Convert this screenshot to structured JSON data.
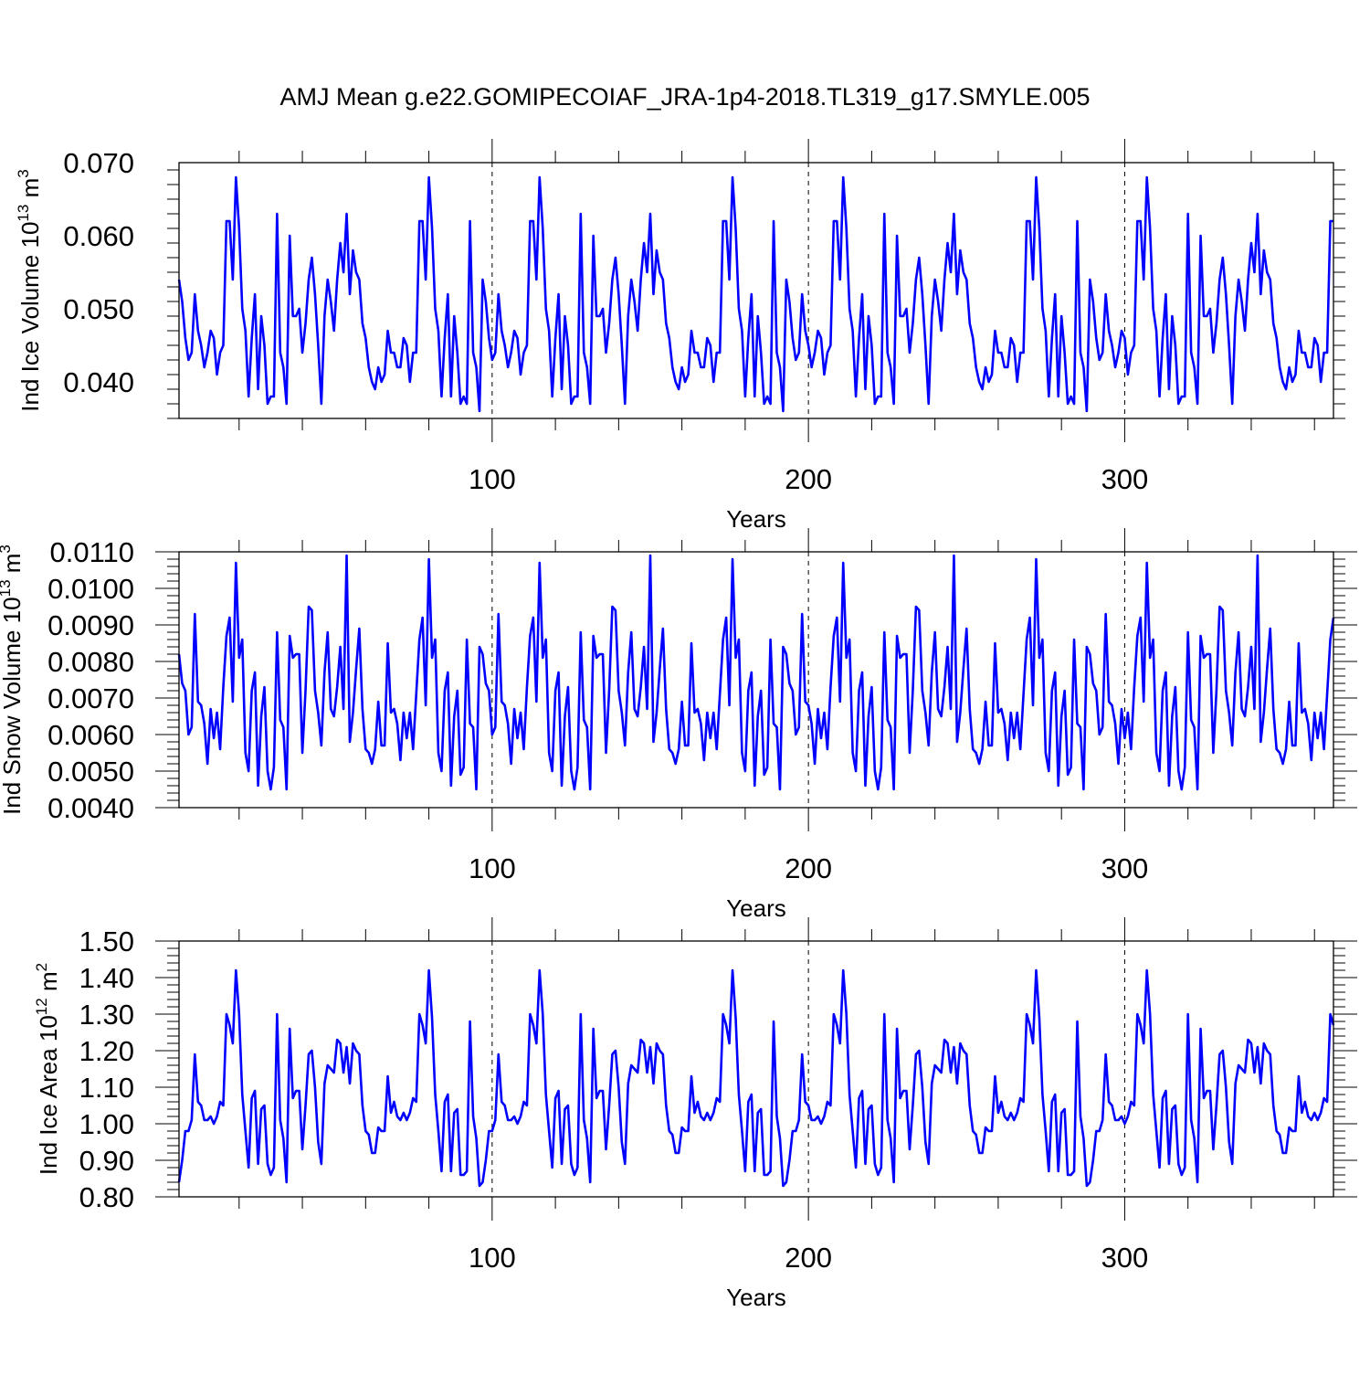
{
  "title": "AMJ Mean g.e22.GOMIPECOIAF_JRA-1p4-2018.TL319_g17.SMYLE.005",
  "line_color": "#0000ff",
  "chart_data": [
    {
      "type": "line",
      "ylabel": "Ind Ice Volume",
      "yunit_base": "10",
      "yunit_exp": "13",
      "yunit_suffix": "m",
      "yunit_suffix_exp": "3",
      "xlabel": "Years",
      "xlim": [
        1,
        366
      ],
      "ylim": [
        0.035,
        0.07
      ],
      "yticks": [
        0.04,
        0.05,
        0.06,
        0.07
      ],
      "ytick_labels": [
        "0.040",
        "0.050",
        "0.060",
        "0.070"
      ],
      "xticks": [
        100,
        200,
        300
      ],
      "xtick_labels": [
        "100",
        "200",
        "300"
      ],
      "decimals": 3,
      "profile": [
        0.054,
        0.051,
        0.046,
        0.043,
        0.044,
        0.052,
        0.047,
        0.045,
        0.042,
        0.044,
        0.047,
        0.046,
        0.041,
        0.044,
        0.045,
        0.062,
        0.062,
        0.054,
        0.068,
        0.061,
        0.05,
        0.047,
        0.038,
        0.046,
        0.052,
        0.039,
        0.049,
        0.045,
        0.037,
        0.038,
        0.038,
        0.063,
        0.044,
        0.042,
        0.037,
        0.06,
        0.049,
        0.049,
        0.05,
        0.044,
        0.048,
        0.054,
        0.057,
        0.052,
        0.045,
        0.037,
        0.049,
        0.054,
        0.051,
        0.047,
        0.054,
        0.059,
        0.055,
        0.063,
        0.052,
        0.058,
        0.055,
        0.054,
        0.048,
        0.046,
        0.042,
        0.04,
        0.039,
        0.042,
        0.04,
        0.041,
        0.047,
        0.044,
        0.044,
        0.042,
        0.042,
        0.046,
        0.045,
        0.04,
        0.044,
        0.044,
        0.062,
        0.062,
        0.054,
        0.068,
        0.061,
        0.05,
        0.047,
        0.038,
        0.046,
        0.052,
        0.038,
        0.049,
        0.044,
        0.037,
        0.038,
        0.037,
        0.062,
        0.044,
        0.042,
        0.036
      ]
    },
    {
      "type": "line",
      "ylabel": "Ind Snow Volume",
      "yunit_base": "10",
      "yunit_exp": "13",
      "yunit_suffix": "m",
      "yunit_suffix_exp": "3",
      "xlabel": "Years",
      "xlim": [
        1,
        366
      ],
      "ylim": [
        0.004,
        0.011
      ],
      "yticks": [
        0.004,
        0.005,
        0.006,
        0.007,
        0.008,
        0.009,
        0.01,
        0.011
      ],
      "ytick_labels": [
        "0.0040",
        "0.0050",
        "0.0060",
        "0.0070",
        "0.0080",
        "0.0090",
        "0.0100",
        "0.0110"
      ],
      "xticks": [
        100,
        200,
        300
      ],
      "xtick_labels": [
        "100",
        "200",
        "300"
      ],
      "decimals": 4,
      "profile": [
        0.0082,
        0.0074,
        0.0072,
        0.006,
        0.0062,
        0.0093,
        0.0069,
        0.0068,
        0.0063,
        0.0052,
        0.0067,
        0.0059,
        0.0066,
        0.0056,
        0.0073,
        0.0087,
        0.0092,
        0.0069,
        0.0107,
        0.0081,
        0.0086,
        0.0055,
        0.005,
        0.0072,
        0.0077,
        0.0046,
        0.0065,
        0.0073,
        0.005,
        0.0045,
        0.0051,
        0.0088,
        0.0064,
        0.0062,
        0.0045,
        0.0087,
        0.0081,
        0.0082,
        0.0082,
        0.0055,
        0.0072,
        0.0095,
        0.0094,
        0.0072,
        0.0066,
        0.0057,
        0.0077,
        0.0088,
        0.0067,
        0.0065,
        0.0073,
        0.0084,
        0.0067,
        0.0109,
        0.0058,
        0.0066,
        0.0078,
        0.0089,
        0.0067,
        0.0056,
        0.0055,
        0.0052,
        0.0056,
        0.0069,
        0.0057,
        0.0057,
        0.0085,
        0.0066,
        0.0067,
        0.0063,
        0.0053,
        0.0066,
        0.0059,
        0.0066,
        0.0056,
        0.0071,
        0.0086,
        0.0092,
        0.0068,
        0.0108,
        0.0081,
        0.0086,
        0.0055,
        0.005,
        0.0072,
        0.0077,
        0.0046,
        0.0065,
        0.0072,
        0.0049,
        0.0051,
        0.0086,
        0.0063,
        0.0062,
        0.0045,
        0.0084
      ]
    },
    {
      "type": "line",
      "ylabel": "Ind Ice Area",
      "yunit_base": "10",
      "yunit_exp": "12",
      "yunit_suffix": "m",
      "yunit_suffix_exp": "2",
      "xlabel": "Years",
      "xlim": [
        1,
        366
      ],
      "ylim": [
        0.8,
        1.5
      ],
      "yticks": [
        0.8,
        0.9,
        1.0,
        1.1,
        1.2,
        1.3,
        1.4,
        1.5
      ],
      "ytick_labels": [
        "0.80",
        "0.90",
        "1.00",
        "1.10",
        "1.20",
        "1.30",
        "1.40",
        "1.50"
      ],
      "xticks": [
        100,
        200,
        300
      ],
      "xtick_labels": [
        "100",
        "200",
        "300"
      ],
      "decimals": 3,
      "profile": [
        0.84,
        0.9,
        0.98,
        0.98,
        1.01,
        1.19,
        1.06,
        1.05,
        1.01,
        1.01,
        1.02,
        1.0,
        1.02,
        1.06,
        1.05,
        1.3,
        1.27,
        1.22,
        1.42,
        1.3,
        1.08,
        0.98,
        0.88,
        1.07,
        1.09,
        0.89,
        1.04,
        1.05,
        0.89,
        0.86,
        0.88,
        1.3,
        1.01,
        0.96,
        0.84,
        1.26,
        1.07,
        1.09,
        1.09,
        0.93,
        1.05,
        1.19,
        1.2,
        1.1,
        0.95,
        0.89,
        1.11,
        1.16,
        1.15,
        1.14,
        1.23,
        1.22,
        1.14,
        1.21,
        1.11,
        1.22,
        1.2,
        1.19,
        1.05,
        0.98,
        0.97,
        0.92,
        0.92,
        0.99,
        0.98,
        0.98,
        1.13,
        1.03,
        1.06,
        1.02,
        1.01,
        1.03,
        1.01,
        1.03,
        1.07,
        1.06,
        1.3,
        1.27,
        1.22,
        1.42,
        1.29,
        1.08,
        0.98,
        0.87,
        1.06,
        1.08,
        0.87,
        1.03,
        1.04,
        0.86,
        0.86,
        0.87,
        1.28,
        1.02,
        0.96,
        0.83
      ]
    }
  ]
}
